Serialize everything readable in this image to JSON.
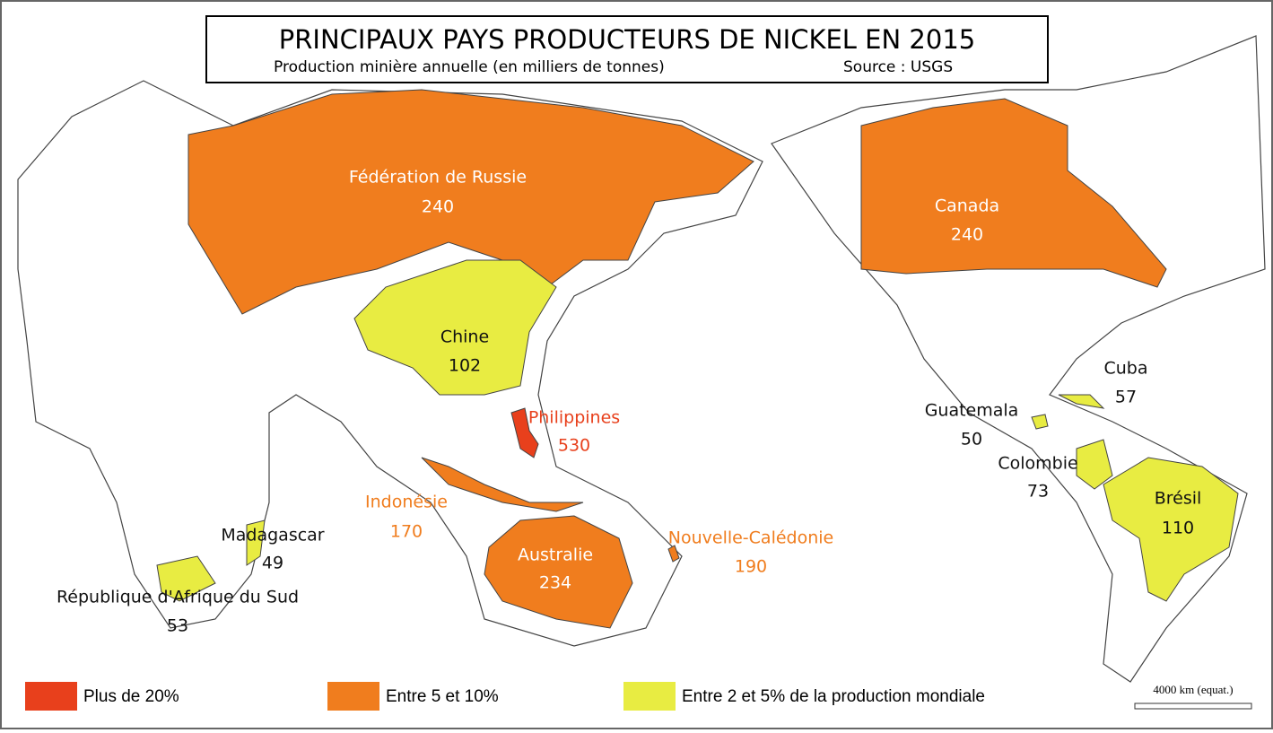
{
  "title": "PRINCIPAUX PAYS PRODUCTEURS DE NICKEL EN 2015",
  "subtitle": "Production minière annuelle (en milliers de tonnes)",
  "source": "Source : USGS",
  "scale": "4000 km (equat.)",
  "legend": [
    {
      "label": "Plus de 20%",
      "color": "#e8401c",
      "countries": [
        {
          "name": "Philippines",
          "value": 530
        }
      ]
    },
    {
      "label": "Entre 5 et 10%",
      "color": "#f07d1e",
      "countries": [
        {
          "name": "Fédération de Russie",
          "value": 240
        },
        {
          "name": "Canada",
          "value": 240
        },
        {
          "name": "Australie",
          "value": 234
        },
        {
          "name": "Indonésie",
          "value": 170
        },
        {
          "name": "Nouvelle-Calédonie",
          "value": 190
        }
      ]
    },
    {
      "label": "Entre 2 et 5% de la production mondiale",
      "color": "#e8ec42",
      "countries": [
        {
          "name": "Chine",
          "value": 102
        },
        {
          "name": "Brésil",
          "value": 110
        },
        {
          "name": "Cuba",
          "value": 57
        },
        {
          "name": "Guatemala",
          "value": 50
        },
        {
          "name": "Colombie",
          "value": 73
        },
        {
          "name": "Madagascar",
          "value": 49
        },
        {
          "name": "République d'Afrique du Sud",
          "value": 53
        }
      ]
    }
  ]
}
